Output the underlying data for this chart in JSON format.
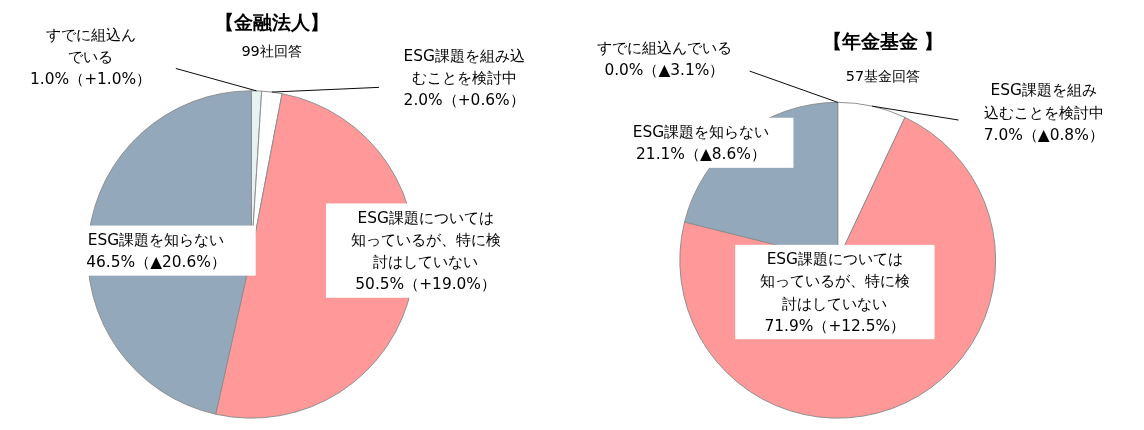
{
  "chart_data": [
    {
      "type": "pie",
      "title": "【金融法人】",
      "subtitle": "99社回答",
      "categories": [
        "すでに組込んでいる",
        "ESG課題を組み込むことを検討中",
        "ESG課題については知っているが、特に検討はしていない",
        "ESG課題を知らない"
      ],
      "values": [
        1.0,
        2.0,
        50.5,
        46.5
      ],
      "colors": [
        "#e6f3f3",
        "#ffffff",
        "#ff9999",
        "#94a8bc"
      ],
      "value_labels": [
        "1.0%（+1.0%）",
        "2.0%（+0.6%）",
        "50.5%（+19.0%）",
        "46.5%（▲20.6%）"
      ]
    },
    {
      "type": "pie",
      "title": "【年金基金 】",
      "subtitle": "57基金回答",
      "categories": [
        "すでに組込んでいる",
        "ESG課題を組み込むことを検討中",
        "ESG課題については知っているが、特に検討はしていない",
        "ESG課題を知らない"
      ],
      "values": [
        0.0,
        7.0,
        71.9,
        21.1
      ],
      "colors": [
        "#e6f3f3",
        "#ffffff",
        "#ff9999",
        "#94a8bc"
      ],
      "value_labels": [
        "0.0%（▲3.1%）",
        "7.0%（▲0.8%）",
        "71.9%（+12.5%）",
        "21.1%（▲8.6%）"
      ]
    }
  ]
}
